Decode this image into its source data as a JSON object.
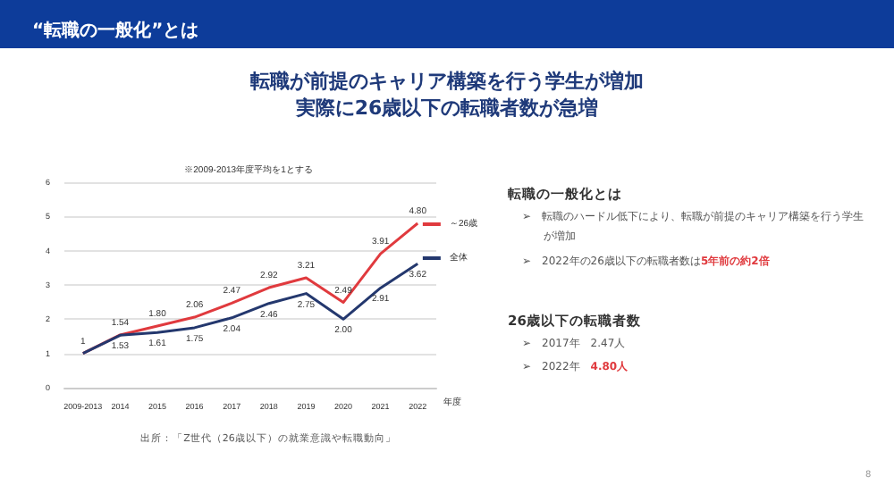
{
  "chart_data": {
    "type": "line",
    "title": "転職が前提のキャリア構築を行う学生が増加実際に26歳以下の転職者数が急増",
    "subtitle": "※2009-2013年度平均を1とする",
    "xlabel": "年度",
    "categories": [
      "2009-2013",
      "2014",
      "2015",
      "2016",
      "2017",
      "2018",
      "2019",
      "2020",
      "2021",
      "2022"
    ],
    "series": [
      {
        "name": "～26歳",
        "color": "#e03a3e",
        "values": [
          1,
          1.54,
          1.8,
          2.06,
          2.47,
          2.92,
          3.21,
          2.49,
          3.91,
          4.8
        ],
        "value_labels": [
          "1",
          "1.54",
          "1.80",
          "2.06",
          "2.47",
          "2.92",
          "3.21",
          "2.49",
          "3.91",
          "4.80"
        ]
      },
      {
        "name": "全体",
        "color": "#24386e",
        "values": [
          1,
          1.53,
          1.61,
          1.75,
          2.04,
          2.46,
          2.75,
          2.0,
          2.91,
          3.62
        ],
        "value_labels": [
          null,
          "1.53",
          "1.61",
          "1.75",
          "2.04",
          "2.46",
          "2.75",
          "2.00",
          "2.91",
          "3.62"
        ]
      }
    ],
    "ylim": [
      0,
      6
    ],
    "yticks": [
      0,
      1,
      2,
      3,
      4,
      5,
      6
    ],
    "grid": "y",
    "legend": "right",
    "marker": "none",
    "line_style": "solid",
    "annotations": [
      "“転職の一般化”とは",
      "転職の一般化とは",
      "➢　転職のハードル低下により、転職が前提のキャリア構築を行う学生が増加",
      "➢　2022年の26歳以下の転職者数は",
      "5年前の約2倍",
      "26歳以下の転職者数",
      "➢　2017年　2.47人",
      "➢　2022年　",
      "4.80人",
      "出所：「Z世代（26歳以下）の就業意識や転職動向」",
      "8"
    ]
  }
}
